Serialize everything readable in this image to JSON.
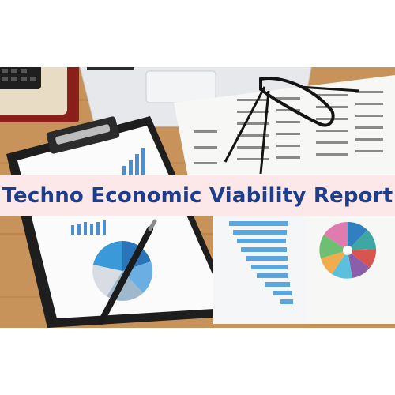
{
  "banner": {
    "title": "Techno Economic Viability Report",
    "background": "#fde8e9",
    "text_color": "#1c3e8c"
  },
  "photo": {
    "objects": [
      "wooden-desk",
      "calculator",
      "laptop",
      "glasses",
      "clipboard",
      "pen",
      "bar-chart-sheet",
      "pie-chart-sheet",
      "financial-table-sheet"
    ],
    "colors": {
      "wood": "#c8935b",
      "chart_blue": "#4a90d0",
      "teal": "#3fa7a3",
      "clipboard": "#1e1e1e"
    }
  }
}
